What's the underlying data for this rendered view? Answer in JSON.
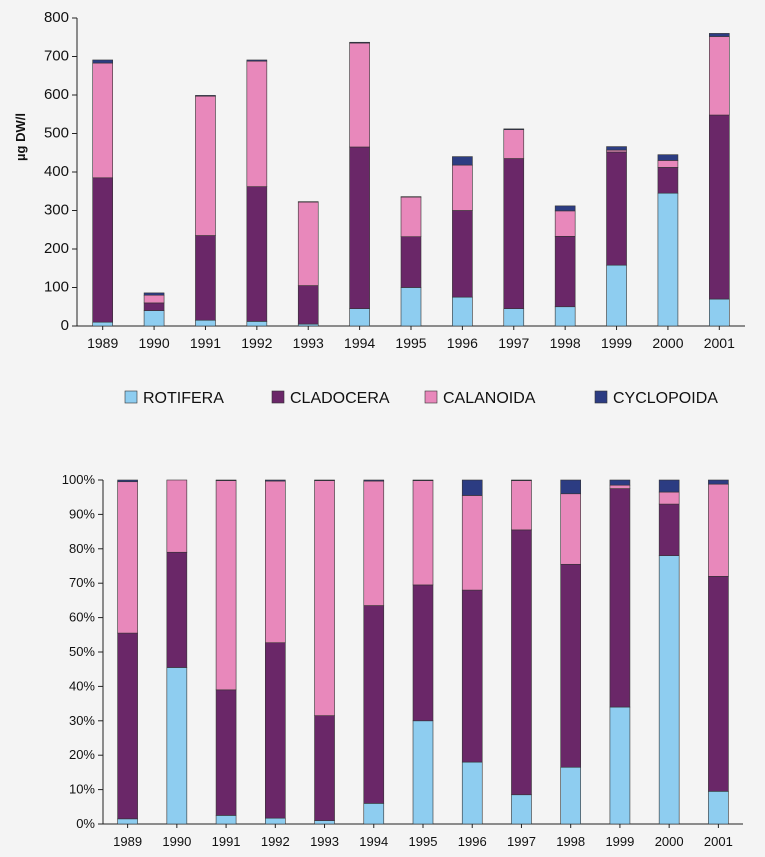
{
  "colors": {
    "ROTIFERA": "#8ecdf0",
    "CLADOCERA": "#6a2768",
    "CALANOIDA": "#e888bb",
    "CYCLOPOIDA": "#2c3c82",
    "background": "#f4f4f4",
    "axis": "#222222"
  },
  "legend": {
    "placement": "between charts",
    "items": [
      "ROTIFERA",
      "CLADOCERA",
      "CALANOIDA",
      "CYCLOPOIDA"
    ]
  },
  "chart_data": [
    {
      "type": "bar",
      "stacked": true,
      "title": "",
      "xlabel": "",
      "ylabel": "µg DW/l",
      "ylim": [
        0,
        800
      ],
      "yticks": [
        "0",
        "100",
        "200",
        "300",
        "400",
        "500",
        "600",
        "700",
        "800"
      ],
      "grid": false,
      "categories": [
        "1989",
        "1990",
        "1991",
        "1992",
        "1993",
        "1994",
        "1995",
        "1996",
        "1997",
        "1998",
        "1999",
        "2000",
        "2001"
      ],
      "series": [
        {
          "name": "ROTIFERA",
          "values": [
            10,
            40,
            15,
            12,
            5,
            45,
            100,
            75,
            45,
            50,
            158,
            345,
            70
          ]
        },
        {
          "name": "CLADOCERA",
          "values": [
            375,
            20,
            220,
            350,
            100,
            420,
            132,
            225,
            390,
            183,
            294,
            67,
            478
          ]
        },
        {
          "name": "CALANOIDA",
          "values": [
            298,
            20,
            362,
            326,
            217,
            270,
            103,
            118,
            75,
            66,
            5,
            18,
            204
          ]
        },
        {
          "name": "CYCLOPOIDA",
          "values": [
            8,
            6,
            2,
            3,
            1,
            2,
            1,
            22,
            2,
            13,
            9,
            15,
            8
          ]
        }
      ]
    },
    {
      "type": "bar",
      "stacked": true,
      "percent": true,
      "title": "",
      "xlabel": "",
      "ylabel": "",
      "ylim": [
        0,
        100
      ],
      "yticks": [
        "0%",
        "10%",
        "20%",
        "30%",
        "40%",
        "50%",
        "60%",
        "70%",
        "80%",
        "90%",
        "100%"
      ],
      "grid": false,
      "categories": [
        "1989",
        "1990",
        "1991",
        "1992",
        "1993",
        "1994",
        "1995",
        "1996",
        "1997",
        "1998",
        "1999",
        "2000",
        "2001"
      ],
      "series": [
        {
          "name": "ROTIFERA",
          "values": [
            1.5,
            45.5,
            2.5,
            1.7,
            1,
            6,
            30,
            18,
            8.5,
            16.5,
            34,
            78,
            9.5
          ]
        },
        {
          "name": "CLADOCERA",
          "values": [
            54,
            33.5,
            36.5,
            51,
            30.5,
            57.5,
            39.5,
            50,
            77,
            59,
            63.5,
            15,
            62.5
          ]
        },
        {
          "name": "CALANOIDA",
          "values": [
            44,
            21,
            60.8,
            47,
            68.3,
            36.2,
            30.3,
            27.5,
            14.3,
            20.5,
            1,
            3.5,
            26.8
          ]
        },
        {
          "name": "CYCLOPOIDA",
          "values": [
            0.5,
            0,
            0.2,
            0.3,
            0.2,
            0.3,
            0.2,
            4.5,
            0.2,
            4,
            1.5,
            3.5,
            1.2
          ]
        }
      ]
    }
  ]
}
